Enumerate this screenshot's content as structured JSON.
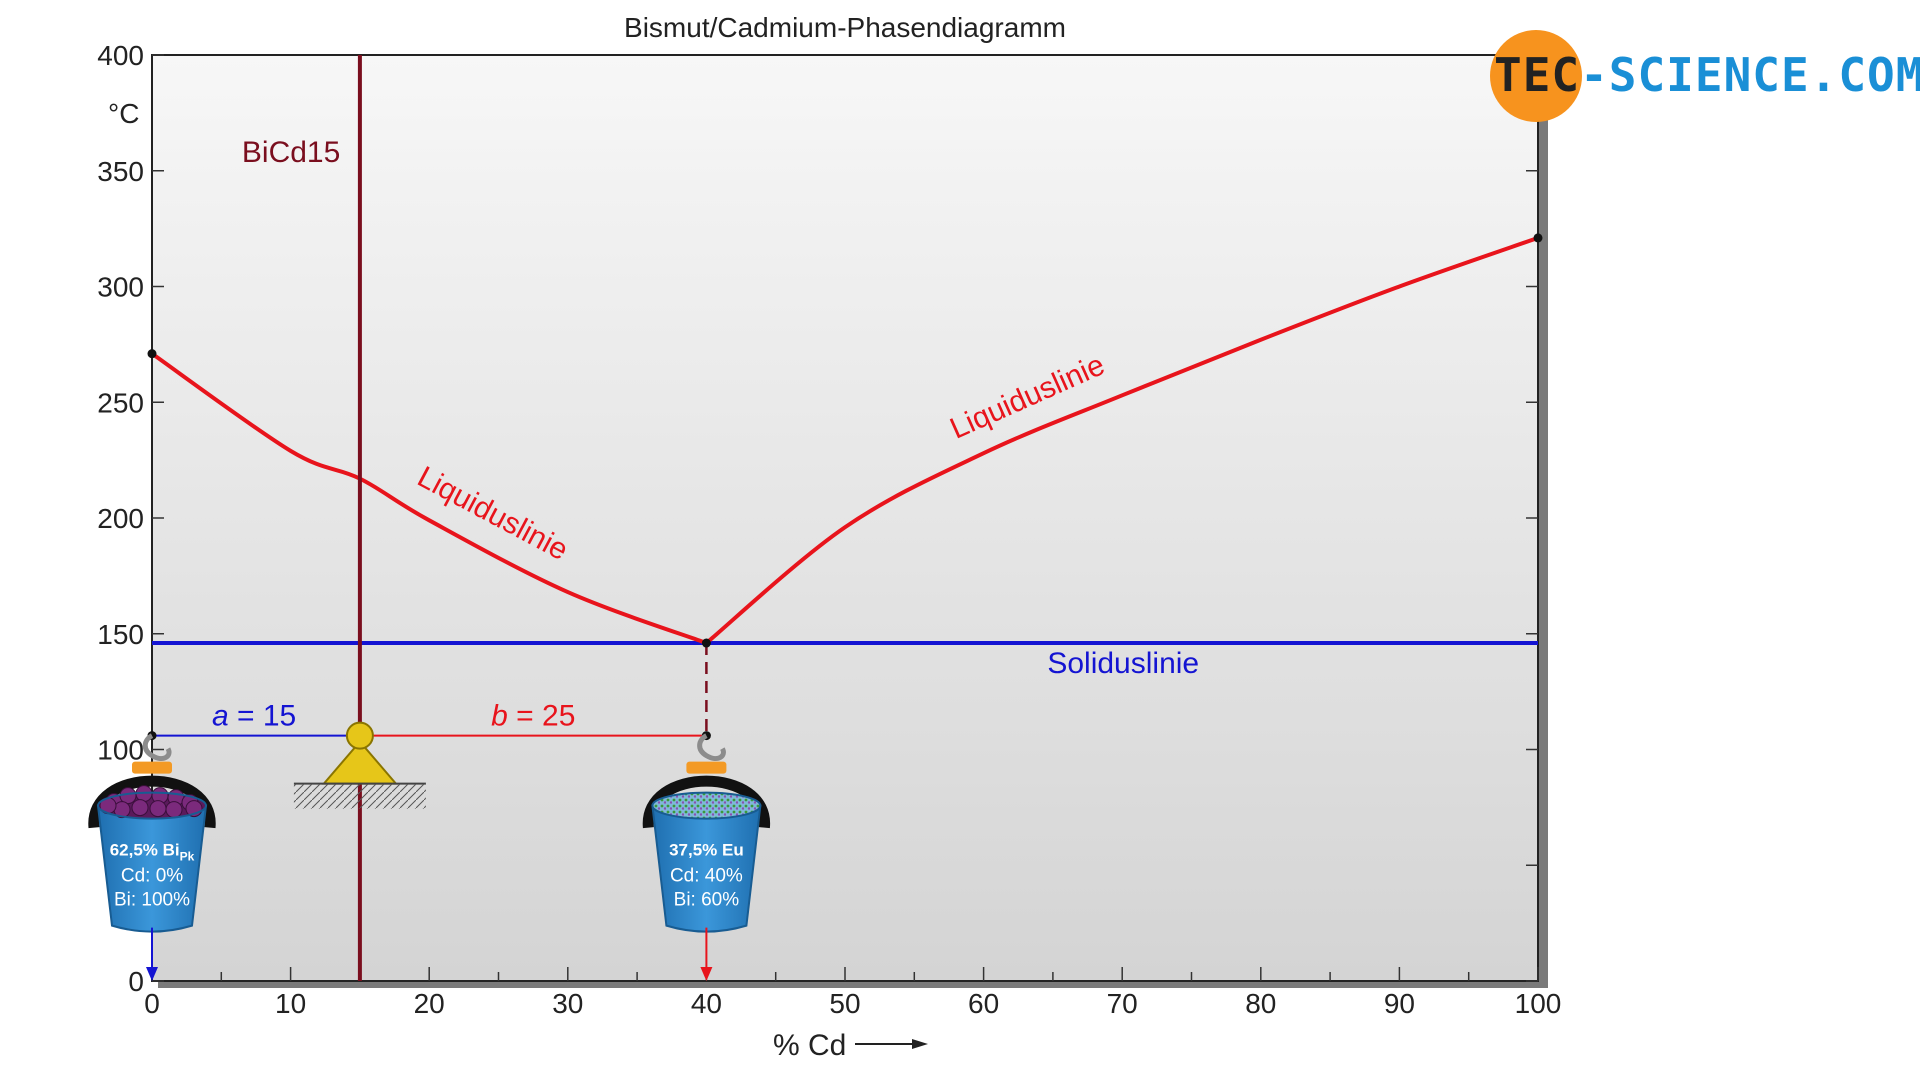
{
  "title": "Bismut/Cadmium-Phasendiagramm",
  "logo": {
    "part1": "TEC",
    "part2": "-SCIENCE.COM"
  },
  "axes": {
    "x_label": "% Cd",
    "y_unit": "°C",
    "x_ticks": [
      "0",
      "10",
      "20",
      "30",
      "40",
      "50",
      "60",
      "70",
      "80",
      "90",
      "100"
    ],
    "y_ticks": [
      "0",
      "100",
      "150",
      "200",
      "250",
      "300",
      "350",
      "400"
    ]
  },
  "labels": {
    "alloy": "BiCd15",
    "liquidus_left": "Liquiduslinie",
    "liquidus_right": "Liquiduslinie",
    "solidus": "Soliduslinie",
    "lever_a": "a = 15",
    "lever_a_var": "a",
    "lever_a_val": " = 15",
    "lever_b_var": "b",
    "lever_b_val": " = 25"
  },
  "bucket_left": {
    "line1": "62,5% Bi",
    "line1_sub": "Pk",
    "line2": "Cd: 0%",
    "line3": "Bi: 100%"
  },
  "bucket_right": {
    "line1": "37,5% Eu",
    "line2": "Cd: 40%",
    "line3": "Bi: 60%"
  },
  "colors": {
    "liquidus": "#e8141c",
    "solidus": "#1414d2",
    "alloy_line": "#7a0e1e",
    "lever_left": "#1414d2",
    "lever_right": "#e8141c",
    "bucket": "#2e86c8",
    "logo_orange": "#f7931e",
    "logo_blue": "#1a8fd6"
  },
  "chart_data": {
    "type": "line",
    "title": "Bismut/Cadmium-Phasendiagramm",
    "xlabel": "% Cd",
    "ylabel": "°C",
    "xlim": [
      0,
      100
    ],
    "ylim": [
      0,
      400
    ],
    "series": [
      {
        "name": "Liquiduslinie",
        "x": [
          0,
          10,
          15,
          20,
          30,
          40
        ],
        "y": [
          271,
          229,
          217,
          199,
          168,
          146
        ]
      },
      {
        "name": "Liquiduslinie",
        "x": [
          40,
          50,
          60,
          70,
          80,
          90,
          100
        ],
        "y": [
          146,
          196,
          228,
          253,
          277,
          300,
          321
        ]
      },
      {
        "name": "Soliduslinie",
        "x": [
          0,
          100
        ],
        "y": [
          146,
          146
        ]
      }
    ],
    "alloy_composition": 15,
    "eutectic_point": {
      "x": 40,
      "y": 146
    },
    "lever_temperature": 106,
    "lever_a": 15,
    "lever_b": 25
  }
}
